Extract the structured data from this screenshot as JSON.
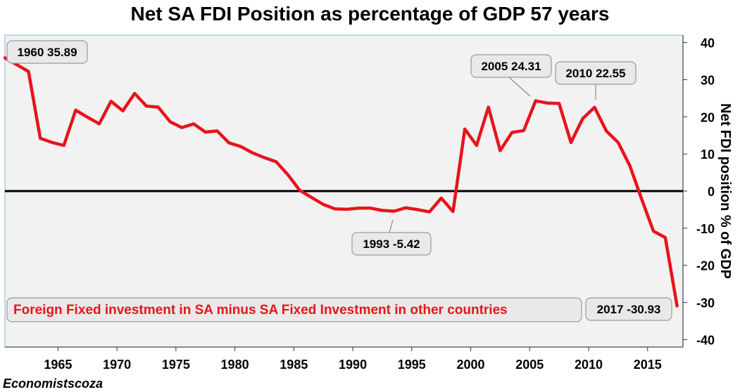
{
  "chart_data": {
    "type": "line",
    "title": "Net SA FDI Position as percentage of GDP 57 years",
    "ylabel": "Net FDI position % of GDP",
    "xlabel": "",
    "xlim": [
      1960.5,
      2018
    ],
    "ylim": [
      -42,
      42
    ],
    "x_ticks": [
      1965,
      1970,
      1975,
      1980,
      1985,
      1990,
      1995,
      2000,
      2005,
      2010,
      2015
    ],
    "y_ticks": [
      40,
      30,
      20,
      10,
      0,
      -10,
      -20,
      -30,
      -40
    ],
    "reference_line": 0,
    "series": [
      {
        "name": "Net SA FDI position",
        "color": "#e8141c",
        "x": [
          1960.5,
          1962.5,
          1963.5,
          1964.5,
          1965.5,
          1966.5,
          1967.5,
          1968.5,
          1969.5,
          1970.5,
          1971.5,
          1972.5,
          1973.5,
          1974.5,
          1975.5,
          1976.5,
          1977.5,
          1978.5,
          1979.5,
          1980.5,
          1981.5,
          1982.5,
          1983.5,
          1984.5,
          1985.5,
          1986.5,
          1987.5,
          1988.5,
          1989.5,
          1990.5,
          1991.5,
          1992.5,
          1993.5,
          1994.5,
          1995.5,
          1996.5,
          1997.5,
          1998.5,
          1999.5,
          2000.5,
          2001.5,
          2002.5,
          2003.5,
          2004.5,
          2005.5,
          2006.5,
          2007.5,
          2008.5,
          2009.5,
          2010.5,
          2011.5,
          2012.5,
          2013.5,
          2014.5,
          2015.5,
          2016.5,
          2017.5
        ],
        "y": [
          35.89,
          32.2,
          14.2,
          13.1,
          12.3,
          21.8,
          19.9,
          18.1,
          24.2,
          21.6,
          26.3,
          22.9,
          22.6,
          18.7,
          17.1,
          18.1,
          15.9,
          16.2,
          13.0,
          12.0,
          10.3,
          9.0,
          7.9,
          4.4,
          0.2,
          -1.7,
          -3.6,
          -4.8,
          -4.9,
          -4.6,
          -4.6,
          -5.2,
          -5.42,
          -4.5,
          -5.0,
          -5.6,
          -1.9,
          -5.5,
          16.7,
          12.3,
          22.6,
          10.9,
          15.8,
          16.3,
          24.31,
          23.7,
          23.6,
          13.1,
          19.5,
          22.55,
          16.2,
          13.1,
          6.8,
          -2.2,
          -10.8,
          -12.5,
          -30.93
        ]
      }
    ],
    "annotations": [
      {
        "id": "ann-1960",
        "text": "1960 35.89"
      },
      {
        "id": "ann-2005",
        "text": "2005 24.31"
      },
      {
        "id": "ann-2010",
        "text": "2010 22.55"
      },
      {
        "id": "ann-1993",
        "text": "1993 -5.42"
      },
      {
        "id": "ann-2017",
        "text": "2017 -30.93"
      }
    ],
    "footnote": "Foreign Fixed investment in SA minus SA Fixed Investment in other countries"
  },
  "credit": "Economistscoza",
  "colors": {
    "line": "#e8141c",
    "panel": "#f2f2f2",
    "panel_border": "#a9cfe0",
    "zero_line": "#000000",
    "footnote": "#e8141c"
  }
}
